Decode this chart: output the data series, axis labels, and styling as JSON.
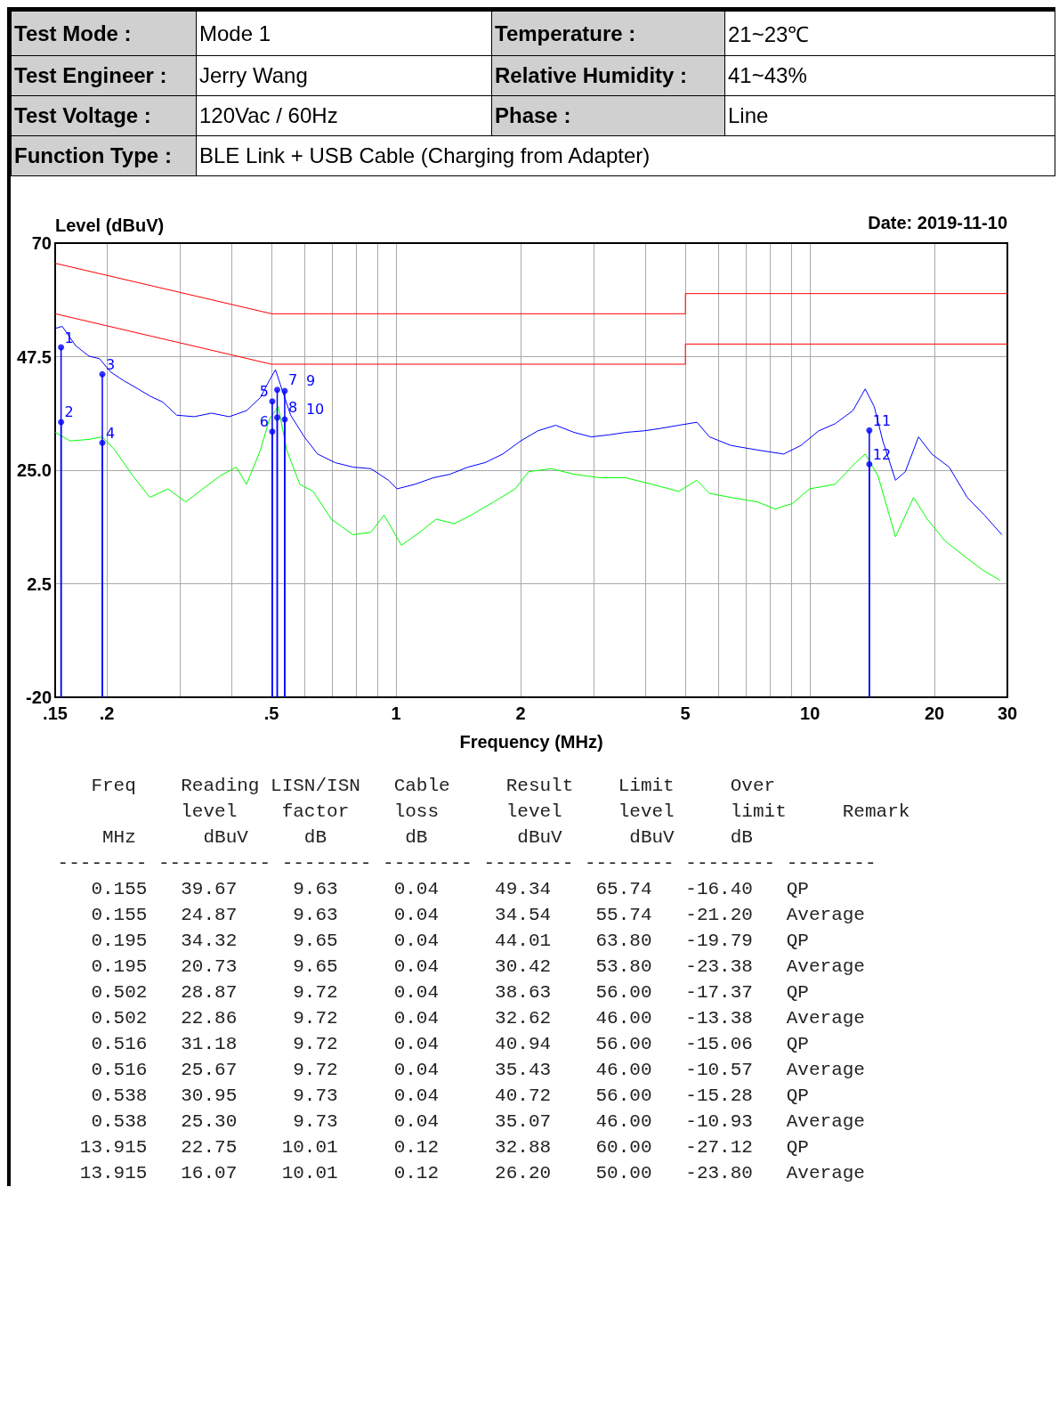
{
  "chart_data": {
    "type": "line",
    "xlabel": "Frequency (MHz)",
    "ylabel": "Level (dBuV)",
    "log": "x",
    "grid": true,
    "marker": "none",
    "line_style": "solid",
    "xlim": [
      0.15,
      30
    ],
    "ylim": [
      -20,
      70
    ],
    "xticks": [
      {
        "value": 0.15,
        "label": ".15"
      },
      {
        "value": 0.2,
        "label": ".2"
      },
      {
        "value": 0.3,
        "label": null
      },
      {
        "value": 0.4,
        "label": null
      },
      {
        "value": 0.5,
        "label": ".5"
      },
      {
        "value": 0.6,
        "label": null
      },
      {
        "value": 0.7,
        "label": null
      },
      {
        "value": 0.8,
        "label": null
      },
      {
        "value": 0.9,
        "label": null
      },
      1,
      2,
      {
        "value": 3,
        "label": null
      },
      {
        "value": 4,
        "label": null
      },
      5,
      {
        "value": 6,
        "label": null
      },
      {
        "value": 7,
        "label": null
      },
      {
        "value": 8,
        "label": null
      },
      {
        "value": 9,
        "label": null
      },
      10,
      20,
      30
    ],
    "yticks": [
      -20,
      2.5,
      {
        "value": 25,
        "label": "25.0"
      },
      47.5,
      70
    ],
    "series": [
      {
        "color": "#ff0000",
        "x": [
          0.15,
          0.5,
          5,
          5,
          30
        ],
        "values": [
          66,
          56,
          56,
          60,
          60
        ]
      },
      {
        "color": "#ff0000",
        "x": [
          0.15,
          0.5,
          5,
          5,
          30
        ],
        "values": [
          56,
          46,
          46,
          50,
          50
        ]
      },
      {
        "color": "#0000ff",
        "x": [
          0.15,
          0.156,
          0.168,
          0.181,
          0.192,
          0.204,
          0.219,
          0.238,
          0.254,
          0.273,
          0.295,
          0.325,
          0.358,
          0.395,
          0.435,
          0.47,
          0.494,
          0.511,
          0.525,
          0.556,
          0.6,
          0.646,
          0.712,
          0.787,
          0.869,
          0.959,
          1.005,
          1.11,
          1.23,
          1.35,
          1.49,
          1.64,
          1.81,
          2.0,
          2.2,
          2.43,
          2.69,
          2.96,
          3.27,
          3.59,
          3.97,
          4.37,
          4.82,
          5.33,
          5.72,
          6.44,
          7.47,
          8.64,
          9.51,
          10.5,
          11.5,
          12.7,
          13.6,
          14.3,
          15.0,
          16.1,
          17.0,
          18.3,
          19.7,
          21.7,
          24.0,
          26.4,
          29.1
        ],
        "values": [
          53.1,
          53.5,
          49.7,
          47.6,
          47.1,
          44.5,
          42.8,
          41.1,
          39.7,
          38.5,
          35.9,
          35.6,
          36.3,
          35.6,
          36.8,
          39.4,
          42.8,
          44.9,
          42.0,
          35.9,
          31.6,
          28.2,
          26.5,
          25.6,
          25.3,
          23.0,
          21.3,
          22.2,
          23.5,
          24.2,
          25.6,
          26.5,
          28.2,
          30.8,
          32.8,
          33.9,
          32.5,
          31.6,
          32.0,
          32.5,
          32.8,
          33.3,
          33.9,
          34.5,
          31.6,
          29.9,
          29.0,
          28.2,
          29.9,
          32.8,
          34.2,
          36.8,
          41.1,
          37.6,
          30.8,
          23.0,
          24.7,
          31.6,
          28.2,
          25.6,
          19.6,
          16.1,
          12.2
        ]
      },
      {
        "color": "#00ff00",
        "x": [
          0.15,
          0.163,
          0.181,
          0.195,
          0.209,
          0.231,
          0.254,
          0.281,
          0.31,
          0.341,
          0.376,
          0.411,
          0.435,
          0.47,
          0.494,
          0.519,
          0.544,
          0.585,
          0.63,
          0.697,
          0.787,
          0.869,
          0.935,
          1.03,
          1.14,
          1.25,
          1.38,
          1.52,
          1.72,
          1.94,
          2.09,
          2.37,
          2.69,
          3.11,
          3.59,
          4.15,
          4.82,
          5.33,
          5.72,
          6.44,
          7.47,
          8.24,
          9.07,
          9.98,
          11.5,
          12.9,
          13.6,
          14.6,
          16.1,
          17.8,
          19.2,
          21.2,
          24.0,
          26.4,
          28.8
        ],
        "values": [
          32.5,
          30.8,
          31.1,
          31.6,
          29.0,
          23.9,
          19.6,
          21.3,
          18.7,
          21.3,
          23.9,
          25.6,
          22.2,
          29.0,
          35.1,
          37.6,
          29.0,
          22.2,
          20.8,
          15.3,
          12.2,
          12.7,
          16.1,
          10.1,
          12.7,
          15.3,
          14.4,
          16.1,
          18.7,
          21.3,
          24.7,
          25.3,
          24.2,
          23.5,
          23.5,
          22.2,
          20.8,
          23.0,
          20.4,
          19.6,
          18.7,
          17.3,
          18.4,
          21.3,
          22.2,
          26.5,
          28.2,
          23.9,
          11.8,
          19.6,
          15.3,
          11.0,
          7.5,
          5.0,
          3.2
        ]
      },
      {
        "type": "lollipop",
        "color": "#0000ff",
        "marker": "circle",
        "x": [
          0.155,
          0.155,
          0.195,
          0.195,
          0.502,
          0.502,
          0.516,
          0.516,
          0.538,
          0.538,
          13.915,
          13.915
        ],
        "values": [
          49.34,
          34.54,
          44.01,
          30.42,
          38.63,
          32.62,
          40.94,
          35.43,
          40.72,
          35.07,
          32.88,
          26.2
        ]
      }
    ],
    "annotations": [
      "Test Mode :",
      "Mode 1",
      "Temperature :",
      "21~23℃",
      "Test Engineer :",
      "Jerry Wang",
      "Relative Humidity :",
      "41~43%",
      "Test Voltage :",
      "120Vac / 60Hz",
      "Phase :",
      "Line",
      "Function Type :",
      "BLE Link + USB Cable (Charging from Adapter)",
      "Date: 2019-11-10",
      "    Freq    Reading LISN/ISN   Cable     Result    Limit     Over",
      "            level    factor    loss      level     level     limit     Remark",
      "     MHz      dBuV     dB       dB        dBuV      dBuV     dB",
      " -------- ---------- -------- -------- -------- -------- -------- --------",
      "    0.155   39.67     9.63     0.04     49.34    65.74   -16.40   QP",
      "    0.155   24.87     9.63     0.04     34.54    55.74   -21.20   Average",
      "    0.195   34.32     9.65     0.04     44.01    63.80   -19.79   QP",
      "    0.195   20.73     9.65     0.04     30.42    53.80   -23.38   Average",
      "    0.502   28.87     9.72     0.04     38.63    56.00   -17.37   QP",
      "    0.502   22.86     9.72     0.04     32.62    46.00   -13.38   Average",
      "    0.516   31.18     9.72     0.04     40.94    56.00   -15.06   QP",
      "    0.516   25.67     9.72     0.04     35.43    46.00   -10.57   Average",
      "    0.538   30.95     9.73     0.04     40.72    56.00   -15.28   QP",
      "    0.538   25.30     9.73     0.04     35.07    46.00   -10.93   Average",
      "   13.915   22.75    10.01     0.12     32.88    60.00   -27.12   QP",
      "   13.915   16.07    10.01     0.12     26.20    50.00   -23.80   Average",
      {
        "text": "1",
        "x": 0.155,
        "y": 49.34
      },
      {
        "text": "2",
        "x": 0.155,
        "y": 34.54
      },
      {
        "text": "3",
        "x": 0.195,
        "y": 44.01
      },
      {
        "text": "4",
        "x": 0.195,
        "y": 30.42
      },
      {
        "text": "5",
        "x": 0.502,
        "y": 38.63
      },
      {
        "text": "6",
        "x": 0.502,
        "y": 32.62
      },
      {
        "text": "7",
        "x": 0.516,
        "y": 40.94
      },
      {
        "text": "8",
        "x": 0.516,
        "y": 35.43
      },
      {
        "text": "9",
        "x": 0.538,
        "y": 40.72
      },
      {
        "text": "10",
        "x": 0.538,
        "y": 35.07
      },
      {
        "text": "11",
        "x": 13.915,
        "y": 32.88
      },
      {
        "text": "12",
        "x": 13.915,
        "y": 26.2
      }
    ]
  }
}
